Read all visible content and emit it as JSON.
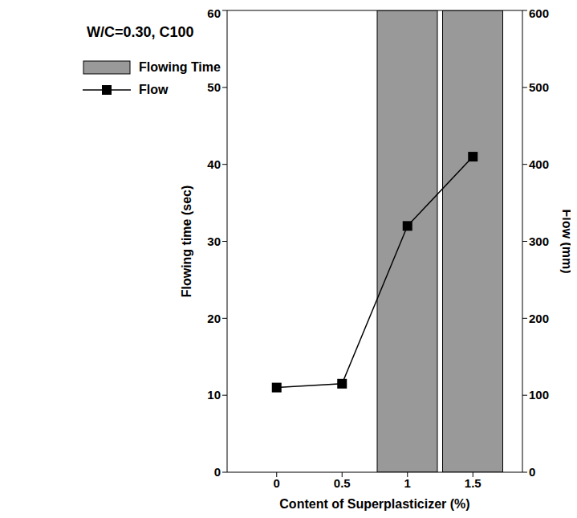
{
  "chart_data": {
    "type": "bar",
    "annotation": "W/C=0.30, C100",
    "x_label": "Content of Superplasticizer (%)",
    "y_label": "Flowing time (sec)",
    "y2_label": "Flow (mm)",
    "categories": [
      "0",
      "0.5",
      "1",
      "1.5"
    ],
    "series": [
      {
        "name": "Flowing Time",
        "type": "bar",
        "color": "#999999",
        "values": [
          null,
          null,
          60,
          60
        ]
      },
      {
        "name": "Flow",
        "type": "line",
        "color": "#000000",
        "marker": "square",
        "axis": "y2",
        "values": [
          110,
          115,
          320,
          410
        ]
      }
    ],
    "ylim": [
      0,
      60
    ],
    "yticks": [
      0,
      10,
      20,
      30,
      40,
      50,
      60
    ],
    "y2lim": [
      0,
      600
    ],
    "y2ticks": [
      0,
      100,
      200,
      300,
      400,
      500,
      600
    ],
    "legend": "upper left"
  }
}
